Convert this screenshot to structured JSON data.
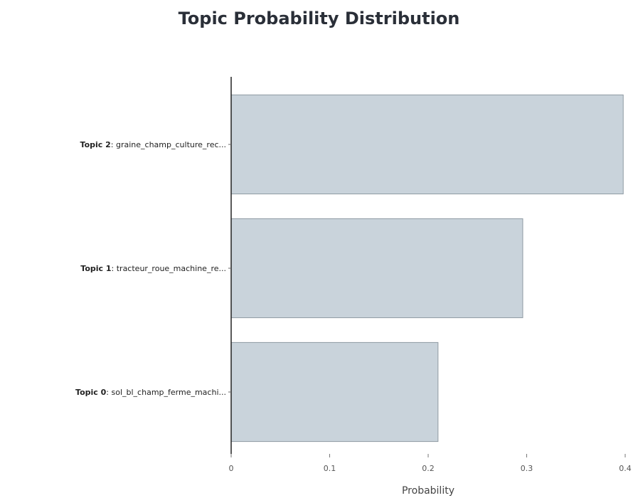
{
  "chart_data": {
    "type": "bar",
    "orientation": "horizontal",
    "title": "Topic Probability Distribution",
    "xlabel": "Probability",
    "ylabel": "",
    "xlim": [
      0,
      0.4
    ],
    "xticks": [
      "0",
      "0.1",
      "0.2",
      "0.3",
      "0.4"
    ],
    "categories": [
      {
        "topic": "Topic 2",
        "words": ": graine_champ_culture_rec..."
      },
      {
        "topic": "Topic 1",
        "words": ": tracteur_roue_machine_re..."
      },
      {
        "topic": "Topic 0",
        "words": ": sol_bl_champ_ferme_machi..."
      }
    ],
    "values": [
      0.398,
      0.296,
      0.21
    ],
    "bar_color": "#c9d3db",
    "bar_edge_color": "#8f9aa3"
  }
}
